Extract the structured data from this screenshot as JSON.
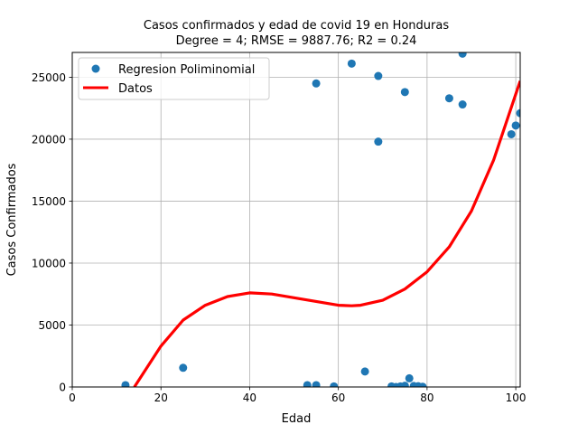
{
  "chart_data": {
    "type": "scatter",
    "title": "Casos confirmados y edad de covid 19 en  Honduras",
    "subtitle": "Degree = 4; RMSE = 9887.76; R2 = 0.24",
    "xlabel": "Edad",
    "ylabel": "Casos Confirmados",
    "xlim": [
      0,
      101
    ],
    "ylim": [
      0,
      27000
    ],
    "xticks": [
      0,
      20,
      40,
      60,
      80,
      100
    ],
    "yticks": [
      0,
      5000,
      10000,
      15000,
      20000,
      25000
    ],
    "grid": true,
    "legend_position": "upper-left",
    "colors": {
      "points": "#1f77b4",
      "curve": "#ff0000"
    },
    "series": [
      {
        "name": "Regresion Poliminomial",
        "kind": "scatter",
        "x": [
          12,
          25,
          53,
          55,
          55,
          59,
          63,
          66,
          69,
          69,
          72,
          73,
          74,
          75,
          75,
          76,
          77,
          78,
          79,
          85,
          88,
          88,
          99,
          100,
          101
        ],
        "y": [
          150,
          1550,
          150,
          24500,
          150,
          50,
          26100,
          1250,
          19800,
          25100,
          50,
          0,
          50,
          23800,
          100,
          700,
          80,
          60,
          20,
          23300,
          22800,
          26900,
          20400,
          21100,
          22100
        ]
      },
      {
        "name": "Datos",
        "kind": "line",
        "x": [
          14,
          20,
          25,
          30,
          35,
          40,
          45,
          50,
          55,
          60,
          63,
          65,
          70,
          75,
          80,
          85,
          90,
          95,
          101
        ],
        "y": [
          0,
          3300,
          5400,
          6600,
          7300,
          7600,
          7500,
          7200,
          6900,
          6600,
          6550,
          6600,
          7000,
          7900,
          9300,
          11300,
          14200,
          18300,
          24700
        ]
      }
    ]
  }
}
